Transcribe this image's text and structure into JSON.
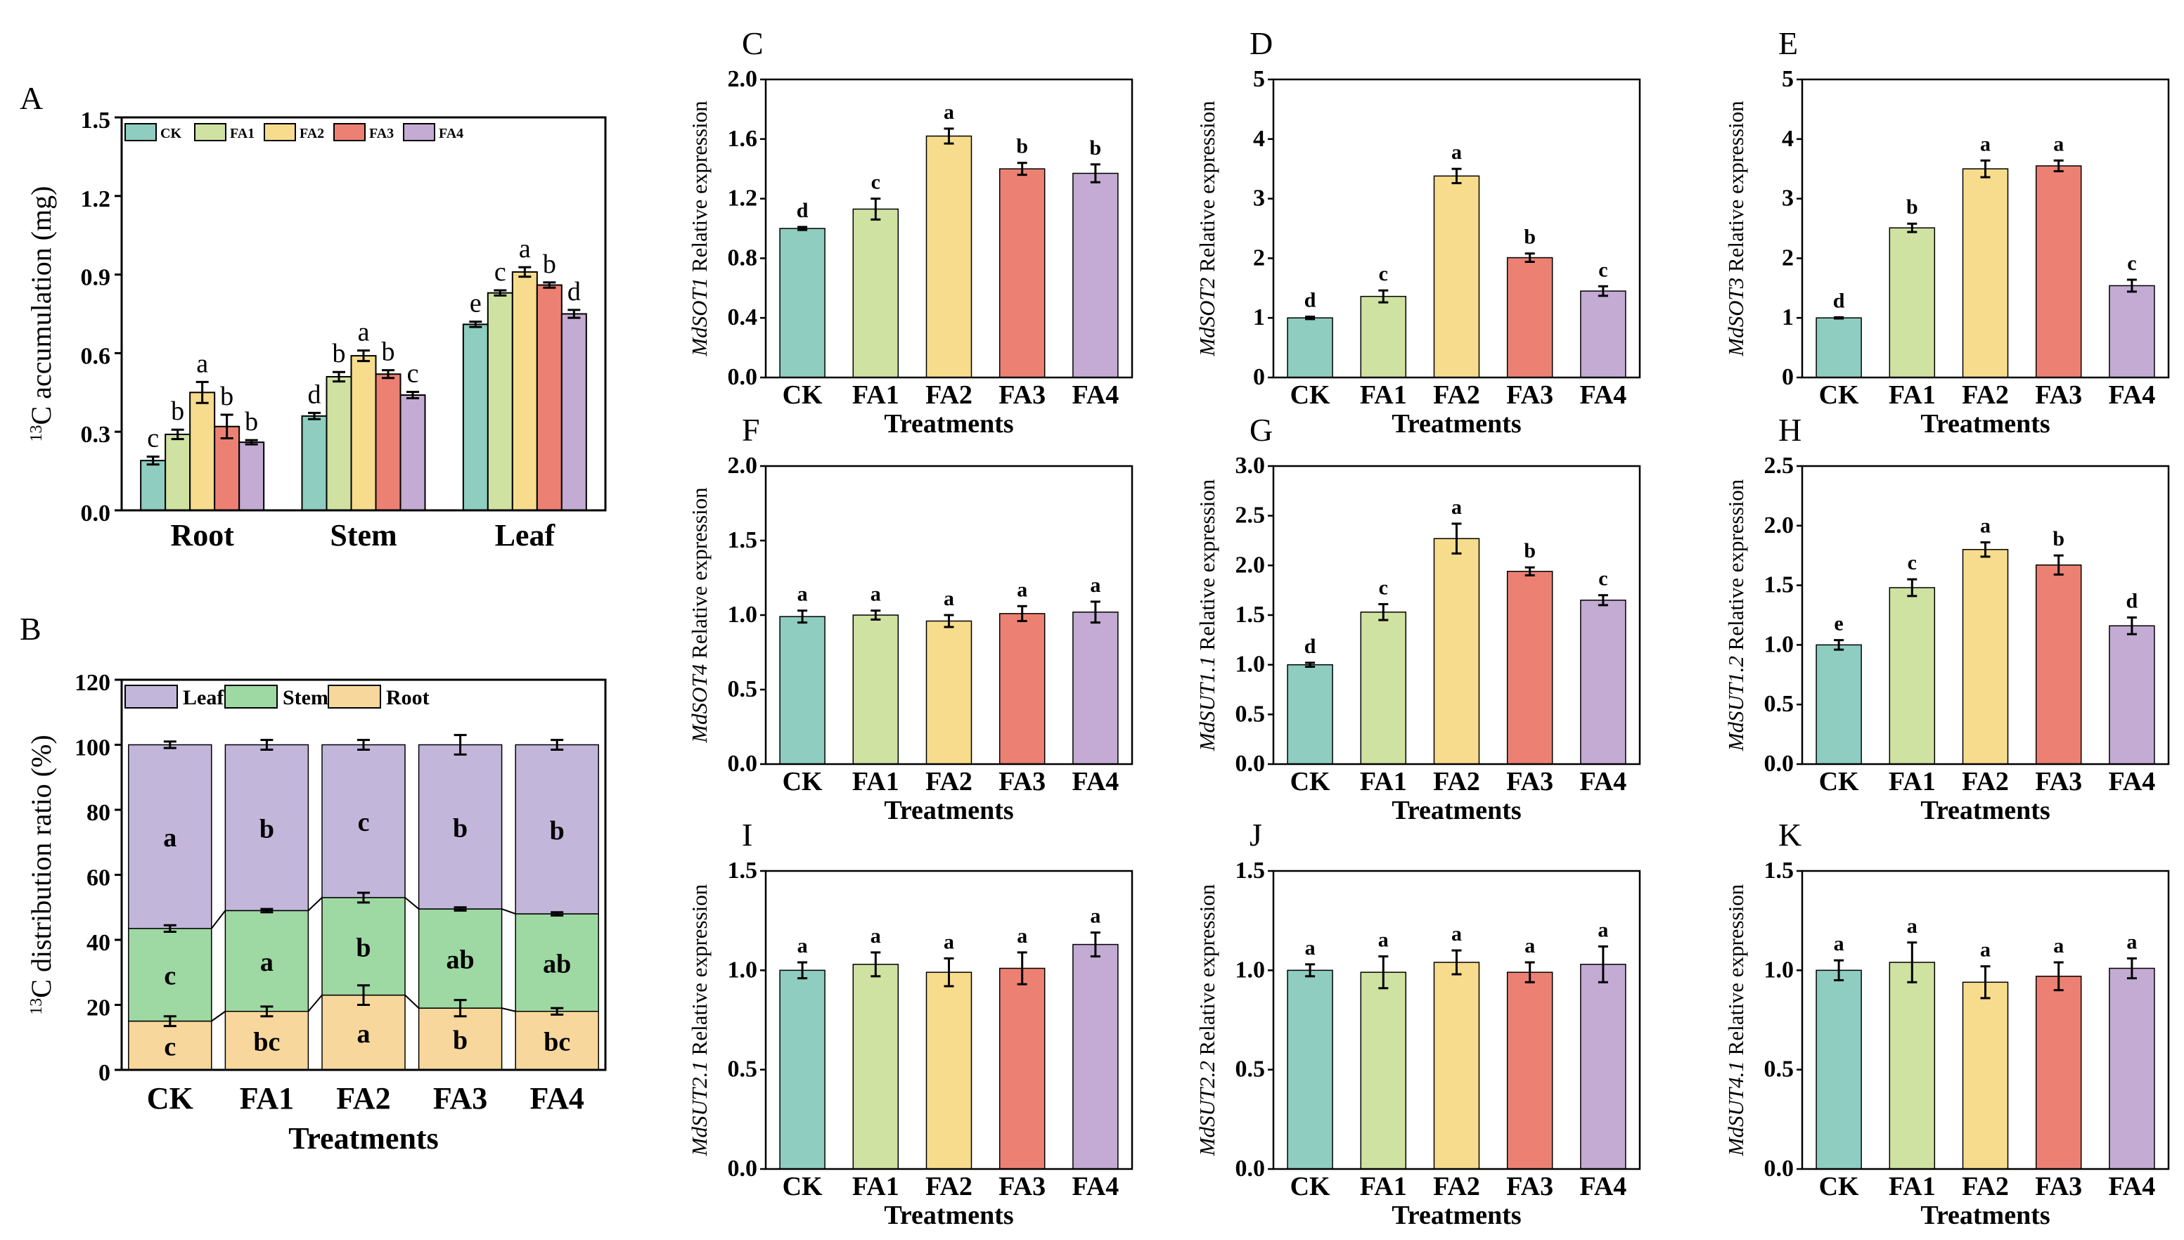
{
  "colors": {
    "CK": "#8ecdc0",
    "FA1": "#cfe2a2",
    "FA2": "#f7dc8d",
    "FA3": "#ec8173",
    "FA4": "#c3abd3",
    "leaf": "#c3b6db",
    "stem": "#9ed8a3",
    "root": "#f7d79b"
  },
  "chart_data": [
    {
      "id": "A",
      "panel_letter": "A",
      "type": "bar",
      "ylabel_sup": "13",
      "ylabel_main": "C accumulation (mg)",
      "categories": [
        "Root",
        "Stem",
        "Leaf"
      ],
      "legend": [
        "CK",
        "FA1",
        "FA2",
        "FA3",
        "FA4"
      ],
      "ylim": [
        0,
        1.5
      ],
      "yticks": [
        "0.0",
        "0.3",
        "0.6",
        "0.9",
        "1.2",
        "1.5"
      ],
      "series": [
        {
          "name": "CK",
          "values": [
            0.19,
            0.36,
            0.71
          ],
          "errors": [
            0.015,
            0.012,
            0.01
          ],
          "letters": [
            "c",
            "d",
            "e"
          ]
        },
        {
          "name": "FA1",
          "values": [
            0.29,
            0.51,
            0.83
          ],
          "errors": [
            0.018,
            0.018,
            0.01
          ],
          "letters": [
            "b",
            "b",
            "c"
          ]
        },
        {
          "name": "FA2",
          "values": [
            0.45,
            0.59,
            0.91
          ],
          "errors": [
            0.04,
            0.02,
            0.018
          ],
          "letters": [
            "a",
            "a",
            "a"
          ]
        },
        {
          "name": "FA3",
          "values": [
            0.32,
            0.52,
            0.86
          ],
          "errors": [
            0.045,
            0.015,
            0.01
          ],
          "letters": [
            "b",
            "b",
            "b"
          ]
        },
        {
          "name": "FA4",
          "values": [
            0.26,
            0.44,
            0.75
          ],
          "errors": [
            0.008,
            0.012,
            0.015
          ],
          "letters": [
            "b",
            "c",
            "d"
          ]
        }
      ]
    },
    {
      "id": "B",
      "panel_letter": "B",
      "type": "bar",
      "stacked": true,
      "ylabel_sup": "13",
      "ylabel_main": "C distribution ratio (%)",
      "xlabel": "Treatments",
      "categories": [
        "CK",
        "FA1",
        "FA2",
        "FA3",
        "FA4"
      ],
      "legend": [
        "Leaf",
        "Stem",
        "Root"
      ],
      "ylim": [
        0,
        120
      ],
      "yticks": [
        "0",
        "20",
        "40",
        "60",
        "80",
        "100",
        "120"
      ],
      "series": [
        {
          "name": "Root",
          "values": [
            15,
            18,
            23,
            19,
            18
          ],
          "errors": [
            1.5,
            1.5,
            3,
            2.5,
            1
          ],
          "letters": [
            "c",
            "bc",
            "a",
            "b",
            "bc"
          ]
        },
        {
          "name": "Stem",
          "values": [
            28.5,
            31,
            30,
            30.5,
            30
          ],
          "errors": [
            1,
            0.5,
            1.5,
            0.5,
            0.5
          ],
          "letters": [
            "c",
            "a",
            "b",
            "ab",
            "ab"
          ]
        },
        {
          "name": "Leaf",
          "values": [
            56.5,
            51,
            47,
            50.5,
            52
          ],
          "errors": [
            1,
            1.5,
            1.5,
            3,
            1.5
          ],
          "letters": [
            "a",
            "b",
            "c",
            "b",
            "b"
          ]
        }
      ]
    },
    {
      "id": "C",
      "panel_letter": "C",
      "type": "bar",
      "gene": "MdSOT1",
      "ylabel_rest": " Relative expression",
      "xlabel": "Treatments",
      "categories": [
        "CK",
        "FA1",
        "FA2",
        "FA3",
        "FA4"
      ],
      "ylim": [
        0,
        2.0
      ],
      "yticks": [
        "0.0",
        "0.4",
        "0.8",
        "1.2",
        "1.6",
        "2.0"
      ],
      "values": [
        1.0,
        1.13,
        1.62,
        1.4,
        1.37
      ],
      "errors": [
        0.01,
        0.07,
        0.05,
        0.04,
        0.06
      ],
      "letters": [
        "d",
        "c",
        "a",
        "b",
        "b"
      ]
    },
    {
      "id": "D",
      "panel_letter": "D",
      "type": "bar",
      "gene": "MdSOT2",
      "ylabel_rest": " Relative expression",
      "xlabel": "Treatments",
      "categories": [
        "CK",
        "FA1",
        "FA2",
        "FA3",
        "FA4"
      ],
      "ylim": [
        0,
        5
      ],
      "yticks": [
        "0",
        "1",
        "2",
        "3",
        "4",
        "5"
      ],
      "values": [
        1.0,
        1.36,
        3.38,
        2.01,
        1.45
      ],
      "errors": [
        0.02,
        0.1,
        0.12,
        0.07,
        0.08
      ],
      "letters": [
        "d",
        "c",
        "a",
        "b",
        "c"
      ]
    },
    {
      "id": "E",
      "panel_letter": "E",
      "type": "bar",
      "gene": "MdSOT3",
      "ylabel_rest": " Relative expression",
      "xlabel": "Treatments",
      "categories": [
        "CK",
        "FA1",
        "FA2",
        "FA3",
        "FA4"
      ],
      "ylim": [
        0,
        5
      ],
      "yticks": [
        "0",
        "1",
        "2",
        "3",
        "4",
        "5"
      ],
      "values": [
        1.0,
        2.51,
        3.5,
        3.55,
        1.54
      ],
      "errors": [
        0.01,
        0.07,
        0.14,
        0.09,
        0.1
      ],
      "letters": [
        "d",
        "b",
        "a",
        "a",
        "c"
      ]
    },
    {
      "id": "F",
      "panel_letter": "F",
      "type": "bar",
      "gene": "MdSOT4",
      "ylabel_rest": " Relative expression",
      "xlabel": "Treatments",
      "categories": [
        "CK",
        "FA1",
        "FA2",
        "FA3",
        "FA4"
      ],
      "ylim": [
        0,
        2.0
      ],
      "yticks": [
        "0.0",
        "0.5",
        "1.0",
        "1.5",
        "2.0"
      ],
      "values": [
        0.99,
        1.0,
        0.96,
        1.01,
        1.02
      ],
      "errors": [
        0.04,
        0.03,
        0.04,
        0.05,
        0.07
      ],
      "letters": [
        "a",
        "a",
        "a",
        "a",
        "a"
      ]
    },
    {
      "id": "G",
      "panel_letter": "G",
      "type": "bar",
      "gene": "MdSUT1.1",
      "ylabel_rest": " Relative expression",
      "xlabel": "Treatments",
      "categories": [
        "CK",
        "FA1",
        "FA2",
        "FA3",
        "FA4"
      ],
      "ylim": [
        0,
        3.0
      ],
      "yticks": [
        "0.0",
        "0.5",
        "1.0",
        "1.5",
        "2.0",
        "2.5",
        "3.0"
      ],
      "values": [
        1.0,
        1.53,
        2.27,
        1.94,
        1.65
      ],
      "errors": [
        0.02,
        0.08,
        0.15,
        0.04,
        0.05
      ],
      "letters": [
        "d",
        "c",
        "a",
        "b",
        "c"
      ]
    },
    {
      "id": "H",
      "panel_letter": "H",
      "type": "bar",
      "gene": "MdSUT1.2",
      "ylabel_rest": " Relative expression",
      "xlabel": "Treatments",
      "categories": [
        "CK",
        "FA1",
        "FA2",
        "FA3",
        "FA4"
      ],
      "ylim": [
        0,
        2.5
      ],
      "yticks": [
        "0.0",
        "0.5",
        "1.0",
        "1.5",
        "2.0",
        "2.5"
      ],
      "values": [
        1.0,
        1.48,
        1.8,
        1.67,
        1.16
      ],
      "errors": [
        0.04,
        0.07,
        0.06,
        0.08,
        0.07
      ],
      "letters": [
        "e",
        "c",
        "a",
        "b",
        "d"
      ]
    },
    {
      "id": "I",
      "panel_letter": "I",
      "type": "bar",
      "gene": "MdSUT2.1",
      "ylabel_rest": " Relative expression",
      "xlabel": "Treatments",
      "categories": [
        "CK",
        "FA1",
        "FA2",
        "FA3",
        "FA4"
      ],
      "ylim": [
        0,
        1.5
      ],
      "yticks": [
        "0.0",
        "0.5",
        "1.0",
        "1.5"
      ],
      "values": [
        1.0,
        1.03,
        0.99,
        1.01,
        1.13
      ],
      "errors": [
        0.04,
        0.06,
        0.07,
        0.08,
        0.06
      ],
      "letters": [
        "a",
        "a",
        "a",
        "a",
        "a"
      ]
    },
    {
      "id": "J",
      "panel_letter": "J",
      "type": "bar",
      "gene": "MdSUT2.2",
      "ylabel_rest": " Relative expression",
      "xlabel": "Treatments",
      "categories": [
        "CK",
        "FA1",
        "FA2",
        "FA3",
        "FA4"
      ],
      "ylim": [
        0,
        1.5
      ],
      "yticks": [
        "0.0",
        "0.5",
        "1.0",
        "1.5"
      ],
      "values": [
        1.0,
        0.99,
        1.04,
        0.99,
        1.03
      ],
      "errors": [
        0.03,
        0.08,
        0.06,
        0.05,
        0.09
      ],
      "letters": [
        "a",
        "a",
        "a",
        "a",
        "a"
      ]
    },
    {
      "id": "K",
      "panel_letter": "K",
      "type": "bar",
      "gene": "MdSUT4.1",
      "ylabel_rest": " Relative expression",
      "xlabel": "Treatments",
      "categories": [
        "CK",
        "FA1",
        "FA2",
        "FA3",
        "FA4"
      ],
      "ylim": [
        0,
        1.5
      ],
      "yticks": [
        "0.0",
        "0.5",
        "1.0",
        "1.5"
      ],
      "values": [
        1.0,
        1.04,
        0.94,
        0.97,
        1.01
      ],
      "errors": [
        0.05,
        0.1,
        0.08,
        0.07,
        0.05
      ],
      "letters": [
        "a",
        "a",
        "a",
        "a",
        "a"
      ]
    }
  ]
}
